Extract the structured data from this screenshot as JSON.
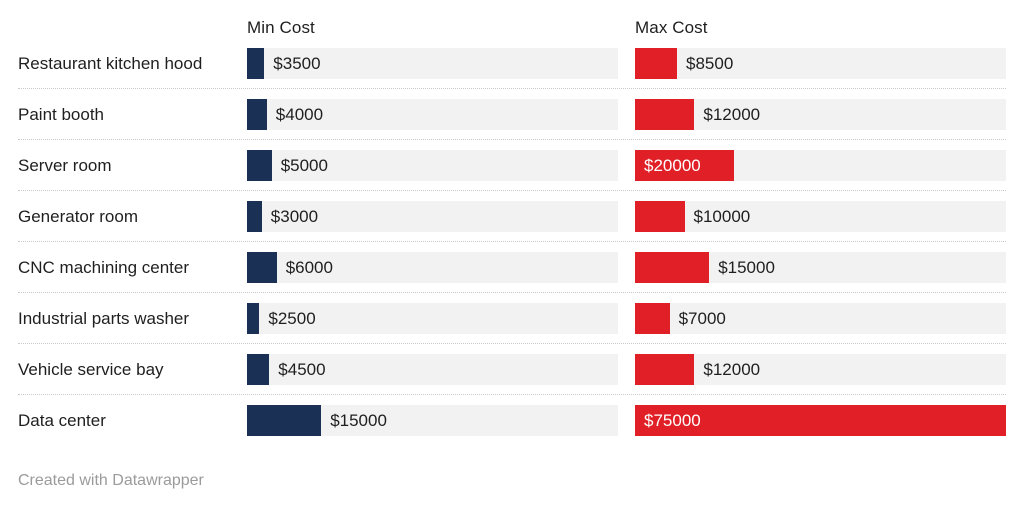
{
  "chart_data": {
    "type": "bar",
    "title": "",
    "categories": [
      "Restaurant kitchen hood",
      "Paint booth",
      "Server room",
      "Generator room",
      "CNC machining center",
      "Industrial parts washer",
      "Vehicle service bay",
      "Data center"
    ],
    "series": [
      {
        "name": "Min Cost",
        "color": "#1b3055",
        "values": [
          3500,
          4000,
          5000,
          3000,
          6000,
          2500,
          4500,
          15000
        ],
        "labels": [
          "$3500",
          "$4000",
          "$5000",
          "$3000",
          "$6000",
          "$2500",
          "$4500",
          "$15000"
        ]
      },
      {
        "name": "Max Cost",
        "color": "#e02026",
        "values": [
          8500,
          12000,
          20000,
          10000,
          15000,
          7000,
          12000,
          75000
        ],
        "labels": [
          "$8500",
          "$12000",
          "$20000",
          "$10000",
          "$15000",
          "$7000",
          "$12000",
          "$75000"
        ]
      }
    ],
    "value_prefix": "$",
    "xlim": [
      0,
      75000
    ],
    "layout": {
      "grid": false,
      "legend_position": "column-headers",
      "track_color": "#f2f2f2",
      "separator_color": "#c9c9c9",
      "label_inside_color": "#ffffff",
      "text_color": "#1f1f1f"
    }
  },
  "footer": {
    "credit": "Created with Datawrapper"
  }
}
